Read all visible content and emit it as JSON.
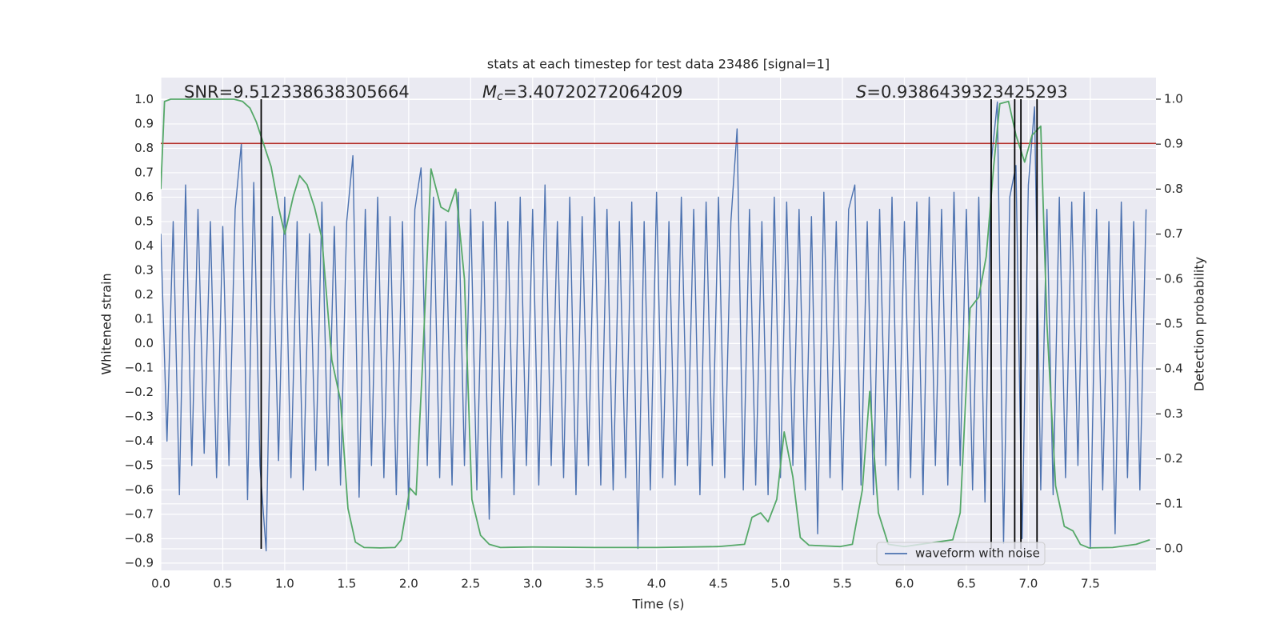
{
  "chart_data": {
    "type": "line",
    "title": "stats at each timestep for test data 23486 [signal=1]",
    "xlabel": "Time (s)",
    "ylabel": "Whitened strain",
    "y2label": "Detection probability",
    "background": "#eaeaf2",
    "grid": true,
    "legend": "lower right",
    "xlim": [
      0,
      8.03
    ],
    "ylim": [
      -0.93,
      1.09
    ],
    "y2lim": [
      -0.048,
      1.048
    ],
    "xticks": [
      {
        "value": 0,
        "label": "0.0"
      },
      0.5,
      {
        "value": 1,
        "label": "1.0"
      },
      1.5,
      {
        "value": 2,
        "label": "2.0"
      },
      2.5,
      {
        "value": 3,
        "label": "3.0"
      },
      3.5,
      {
        "value": 4,
        "label": "4.0"
      },
      4.5,
      {
        "value": 5,
        "label": "5.0"
      },
      5.5,
      {
        "value": 6,
        "label": "6.0"
      },
      6.5,
      {
        "value": 7,
        "label": "7.0"
      },
      7.5
    ],
    "yticks": [
      {
        "value": -0.9,
        "label": "−0.9"
      },
      {
        "value": -0.8,
        "label": "−0.8"
      },
      {
        "value": -0.7,
        "label": "−0.7"
      },
      {
        "value": -0.6,
        "label": "−0.6"
      },
      {
        "value": -0.5,
        "label": "−0.5"
      },
      {
        "value": -0.4,
        "label": "−0.4"
      },
      {
        "value": -0.3,
        "label": "−0.3"
      },
      {
        "value": -0.2,
        "label": "−0.2"
      },
      {
        "value": -0.1,
        "label": "−0.1"
      },
      {
        "value": 0,
        "label": "0.0"
      },
      0.1,
      0.2,
      0.3,
      0.4,
      0.5,
      0.6,
      0.7,
      0.8,
      0.9,
      {
        "value": 1,
        "label": "1.0"
      }
    ],
    "y2ticks": [
      {
        "value": 0,
        "label": "0.0"
      },
      0.1,
      0.2,
      0.3,
      0.4,
      0.5,
      0.6,
      0.7,
      0.8,
      0.9,
      {
        "value": 1,
        "label": "1.0"
      }
    ],
    "series": [
      {
        "name": "waveform with noise",
        "color": "#4c72b0",
        "x": [
          0,
          0.05,
          0.1,
          0.15,
          0.2,
          0.25,
          0.3,
          0.35,
          0.4,
          0.45,
          0.5,
          0.55,
          0.6,
          0.65,
          0.7,
          0.75,
          0.8,
          0.85,
          0.9,
          0.95,
          1,
          1.05,
          1.1,
          1.15,
          1.2,
          1.25,
          1.3,
          1.35,
          1.4,
          1.45,
          1.5,
          1.55,
          1.6,
          1.65,
          1.7,
          1.75,
          1.8,
          1.85,
          1.9,
          1.95,
          2,
          2.05,
          2.1,
          2.15,
          2.2,
          2.25,
          2.3,
          2.35,
          2.4,
          2.45,
          2.5,
          2.55,
          2.6,
          2.65,
          2.7,
          2.75,
          2.8,
          2.85,
          2.9,
          2.95,
          3,
          3.05,
          3.1,
          3.15,
          3.2,
          3.25,
          3.3,
          3.35,
          3.4,
          3.45,
          3.5,
          3.55,
          3.6,
          3.65,
          3.7,
          3.75,
          3.8,
          3.85,
          3.9,
          3.95,
          4,
          4.05,
          4.1,
          4.15,
          4.2,
          4.25,
          4.3,
          4.35,
          4.4,
          4.45,
          4.5,
          4.55,
          4.6,
          4.65,
          4.7,
          4.75,
          4.8,
          4.85,
          4.9,
          4.95,
          5,
          5.05,
          5.1,
          5.15,
          5.2,
          5.25,
          5.3,
          5.35,
          5.4,
          5.45,
          5.5,
          5.55,
          5.6,
          5.65,
          5.7,
          5.75,
          5.8,
          5.85,
          5.9,
          5.95,
          6,
          6.05,
          6.1,
          6.15,
          6.2,
          6.25,
          6.3,
          6.35,
          6.4,
          6.45,
          6.5,
          6.55,
          6.6,
          6.65,
          6.7,
          6.75,
          6.8,
          6.85,
          6.9,
          6.95,
          7,
          7.05,
          7.1,
          7.15,
          7.2,
          7.25,
          7.3,
          7.35,
          7.4,
          7.45,
          7.5,
          7.55,
          7.6,
          7.65,
          7.7,
          7.75,
          7.8,
          7.85,
          7.9,
          7.95
        ],
        "values": [
          0.45,
          -0.4,
          0.5,
          -0.62,
          0.65,
          -0.5,
          0.55,
          -0.45,
          0.5,
          -0.55,
          0.48,
          -0.5,
          0.55,
          0.82,
          -0.64,
          0.66,
          -0.5,
          -0.85,
          0.52,
          -0.48,
          0.6,
          -0.55,
          0.5,
          -0.6,
          0.45,
          -0.52,
          0.58,
          -0.5,
          0.48,
          -0.58,
          0.5,
          0.77,
          -0.63,
          0.55,
          -0.5,
          0.6,
          -0.55,
          0.52,
          -0.62,
          0.5,
          -0.68,
          0.55,
          0.72,
          -0.5,
          0.6,
          -0.55,
          0.5,
          -0.58,
          0.62,
          -0.5,
          0.55,
          -0.6,
          0.5,
          -0.72,
          0.58,
          -0.55,
          0.5,
          -0.62,
          0.6,
          -0.5,
          0.55,
          -0.58,
          0.65,
          -0.5,
          0.5,
          -0.55,
          0.6,
          -0.62,
          0.52,
          -0.5,
          0.6,
          -0.58,
          0.55,
          -0.6,
          0.5,
          -0.55,
          0.58,
          -0.84,
          0.5,
          -0.6,
          0.62,
          -0.55,
          0.5,
          -0.58,
          0.6,
          -0.5,
          0.55,
          -0.62,
          0.58,
          -0.5,
          0.6,
          -0.55,
          0.5,
          0.88,
          -0.6,
          0.55,
          -0.58,
          0.5,
          -0.62,
          0.6,
          -0.55,
          0.58,
          -0.5,
          0.55,
          -0.6,
          0.52,
          -0.78,
          0.62,
          -0.55,
          0.5,
          -0.6,
          0.55,
          0.65,
          -0.58,
          0.5,
          -0.62,
          0.55,
          -0.5,
          0.6,
          -0.6,
          0.5,
          -0.55,
          0.58,
          -0.62,
          0.6,
          -0.5,
          0.55,
          -0.58,
          0.62,
          -0.5,
          0.55,
          -0.6,
          0.6,
          -0.65,
          0.74,
          0.99,
          -0.82,
          0.6,
          0.73,
          -0.8,
          0.65,
          0.97,
          -0.6,
          0.55,
          -0.62,
          0.6,
          -0.55,
          0.58,
          -0.5,
          0.62,
          -0.84,
          0.55,
          -0.6,
          0.5,
          -0.78,
          0.58,
          -0.55,
          0.5,
          -0.6,
          0.55
        ]
      },
      {
        "color": "#55a868",
        "axis": "y2",
        "x": [
          0,
          0.03,
          0.08,
          0.59,
          0.66,
          0.72,
          0.77,
          0.83,
          0.89,
          0.95,
          1.0,
          1.07,
          1.12,
          1.18,
          1.24,
          1.3,
          1.38,
          1.45,
          1.51,
          1.57,
          1.64,
          1.77,
          1.89,
          1.94,
          2.01,
          2.06,
          2.11,
          2.18,
          2.26,
          2.32,
          2.38,
          2.45,
          2.51,
          2.58,
          2.65,
          2.74,
          3.0,
          3.5,
          4.0,
          4.5,
          4.71,
          4.77,
          4.84,
          4.9,
          4.97,
          5.03,
          5.1,
          5.16,
          5.23,
          5.48,
          5.58,
          5.66,
          5.72,
          5.79,
          5.87,
          6.0,
          6.39,
          6.45,
          6.53,
          6.6,
          6.66,
          6.72,
          6.77,
          6.84,
          6.9,
          6.97,
          7.03,
          7.1,
          7.15,
          7.22,
          7.29,
          7.36,
          7.42,
          7.49,
          7.68,
          7.87,
          7.98
        ],
        "values": [
          0.8,
          0.995,
          1.0,
          1.0,
          0.995,
          0.98,
          0.95,
          0.9,
          0.85,
          0.76,
          0.7,
          0.785,
          0.83,
          0.81,
          0.76,
          0.69,
          0.42,
          0.33,
          0.09,
          0.015,
          0.003,
          0.002,
          0.003,
          0.02,
          0.135,
          0.12,
          0.4,
          0.845,
          0.76,
          0.75,
          0.8,
          0.6,
          0.11,
          0.03,
          0.01,
          0.003,
          0.004,
          0.003,
          0.003,
          0.005,
          0.01,
          0.07,
          0.08,
          0.06,
          0.11,
          0.26,
          0.16,
          0.025,
          0.008,
          0.005,
          0.01,
          0.13,
          0.35,
          0.08,
          0.01,
          0.005,
          0.02,
          0.08,
          0.535,
          0.56,
          0.65,
          0.85,
          0.99,
          0.995,
          0.92,
          0.86,
          0.92,
          0.94,
          0.5,
          0.14,
          0.05,
          0.04,
          0.01,
          0.002,
          0.003,
          0.01,
          0.02
        ]
      }
    ],
    "hline": {
      "y": 0.82,
      "color": "#b5332e"
    },
    "vlines": {
      "x": [
        0.81,
        6.7,
        6.89,
        6.94,
        7.07
      ],
      "ymin": 0,
      "ymax": 1,
      "axis": "y2",
      "color": "#000000"
    },
    "annotations": [
      {
        "text": "SNR=9.512338638305664"
      },
      {
        "symbol": "M",
        "subscript": "c",
        "text": "=3.40720272064209"
      },
      {
        "symbol": "S",
        "text": "=0.9386439323425293"
      }
    ]
  }
}
